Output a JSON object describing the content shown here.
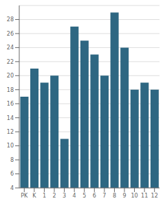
{
  "chart_data": {
    "type": "bar",
    "categories": [
      "PK",
      "K",
      "1",
      "2",
      "3",
      "4",
      "5",
      "6",
      "7",
      "8",
      "9",
      "10",
      "11",
      "12"
    ],
    "values": [
      17,
      21,
      19,
      20,
      11,
      27,
      25,
      23,
      20,
      29,
      24,
      18,
      19,
      18
    ],
    "color": "#2e6782",
    "ylim": [
      4,
      30
    ],
    "yticks": [
      4,
      6,
      8,
      10,
      12,
      14,
      16,
      18,
      20,
      22,
      24,
      26,
      28
    ],
    "grid": true
  }
}
